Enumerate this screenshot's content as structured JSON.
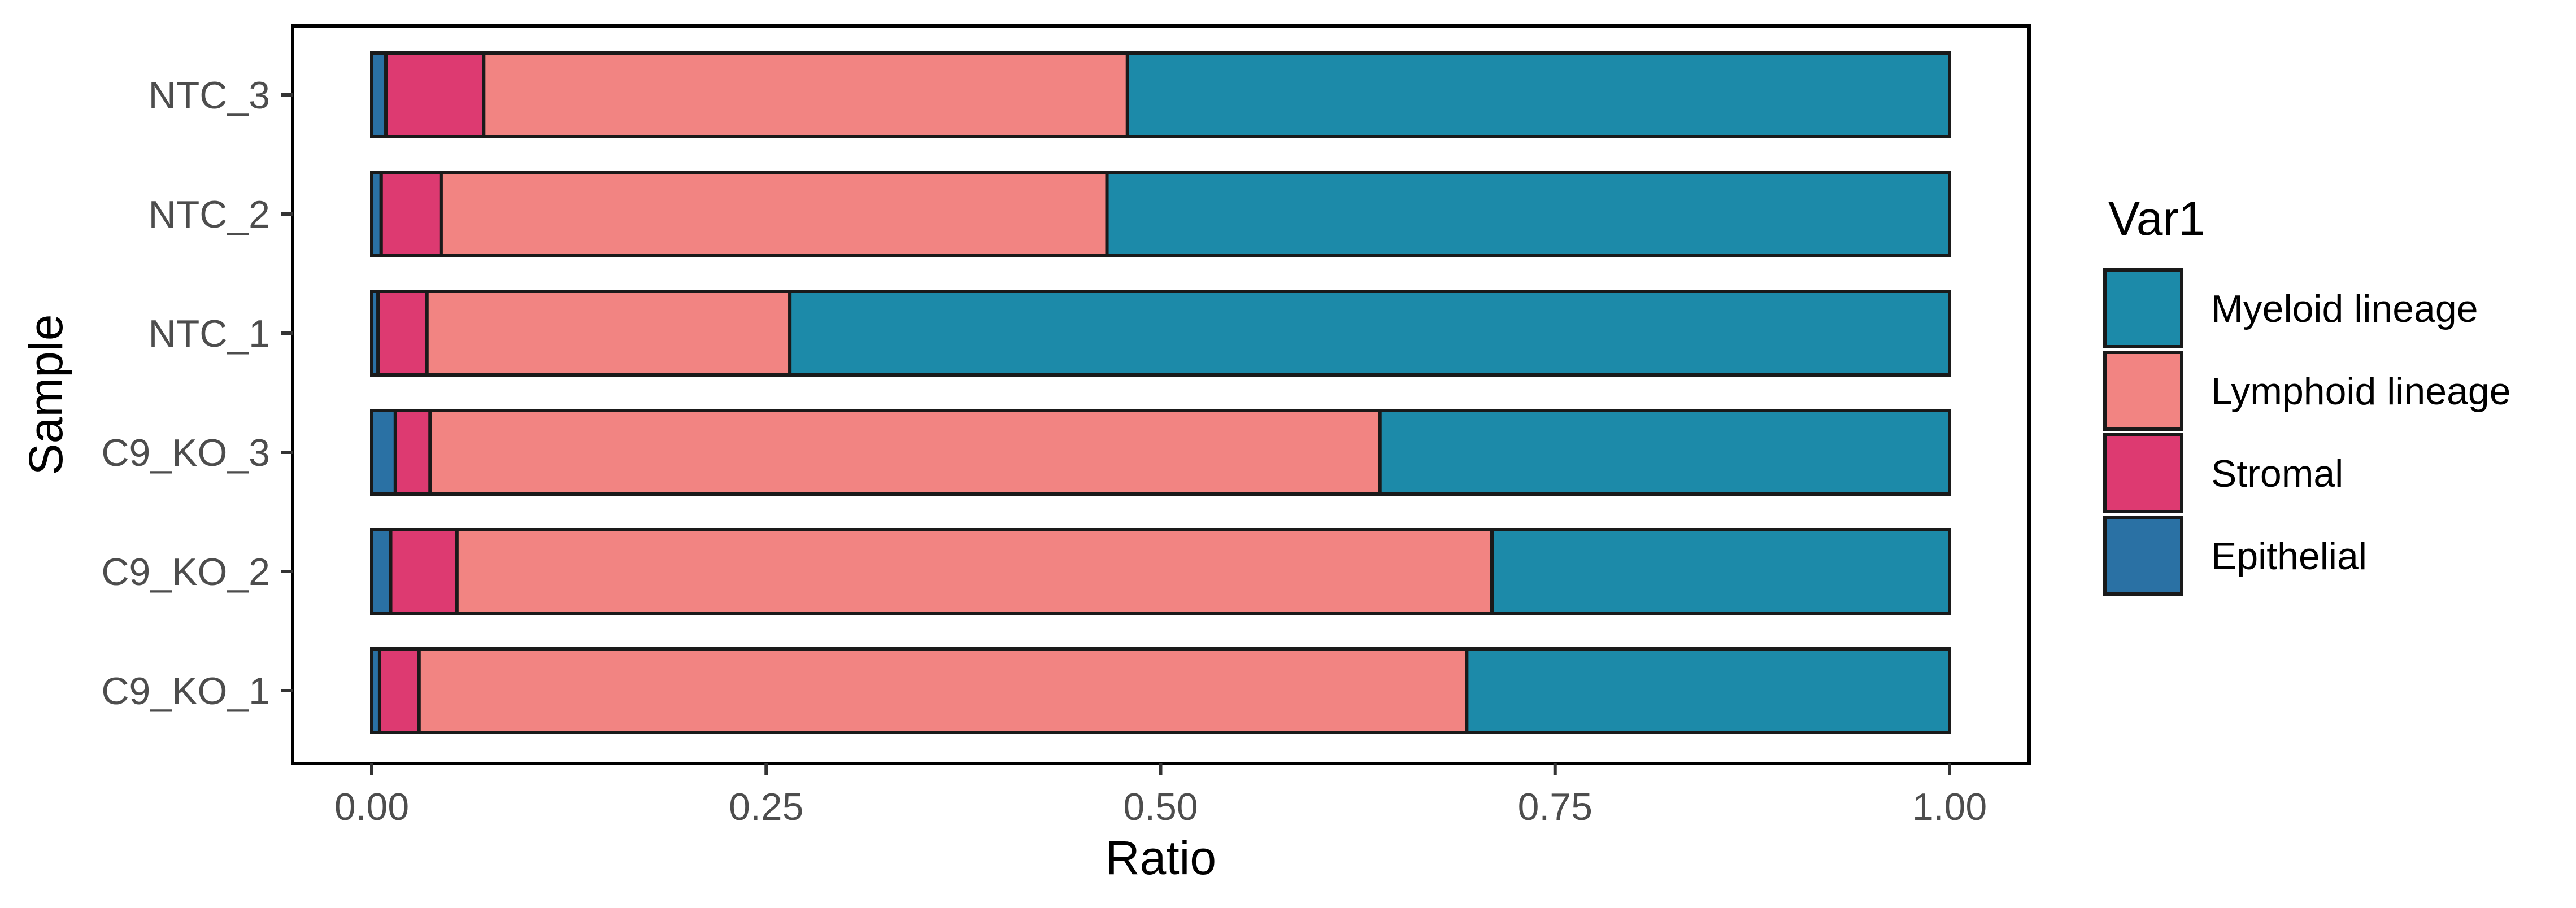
{
  "chart_data": {
    "type": "bar",
    "orientation": "horizontal",
    "stacked": true,
    "xlabel": "Ratio",
    "ylabel": "Sample",
    "xlim": [
      0,
      1
    ],
    "x_ticks": [
      "0.00",
      "0.25",
      "0.50",
      "0.75",
      "1.00"
    ],
    "x_tick_values": [
      0,
      0.25,
      0.5,
      0.75,
      1.0
    ],
    "categories": [
      "C9_KO_1",
      "C9_KO_2",
      "C9_KO_3",
      "NTC_1",
      "NTC_2",
      "NTC_3"
    ],
    "legend_title": "Var1",
    "legend_position": "right",
    "grid": false,
    "series": [
      {
        "name": "Epithelial",
        "color": "#2A71A4",
        "values": [
          0.005,
          0.012,
          0.015,
          0.004,
          0.006,
          0.009
        ]
      },
      {
        "name": "Stromal",
        "color": "#DD3A71",
        "values": [
          0.025,
          0.042,
          0.022,
          0.031,
          0.038,
          0.062
        ]
      },
      {
        "name": "Lymphoid lineage",
        "color": "#F28482",
        "values": [
          0.664,
          0.656,
          0.602,
          0.23,
          0.422,
          0.408
        ]
      },
      {
        "name": "Myeloid lineage",
        "color": "#1C8AA9",
        "values": [
          0.306,
          0.29,
          0.361,
          0.735,
          0.534,
          0.521
        ]
      }
    ],
    "legend_order": [
      "Myeloid lineage",
      "Lymphoid lineage",
      "Stromal",
      "Epithelial"
    ]
  }
}
